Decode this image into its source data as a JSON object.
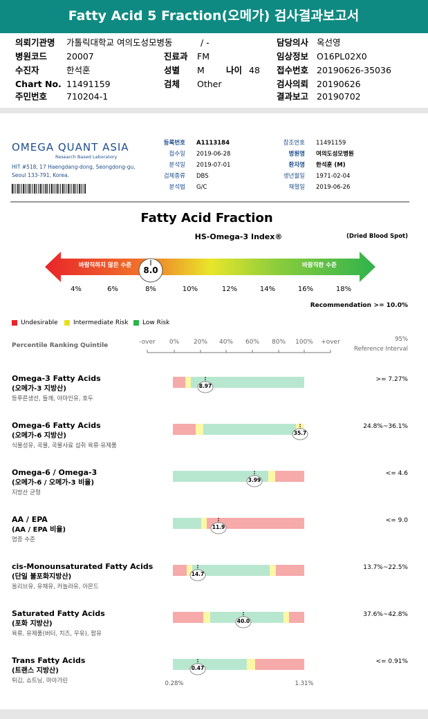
{
  "header": {
    "title": "Fatty Acid 5 Fraction(오메가) 검사결과보고서"
  },
  "info": {
    "requester": {
      "label": "의뢰기관명",
      "value": "가톨릭대학교 여의도성모병동"
    },
    "department_ward": "/ -",
    "doctor": {
      "label": "담당의사",
      "value": "옥선영"
    },
    "hospital_code": {
      "label": "병원코드",
      "value": "20007"
    },
    "department": {
      "label": "진료과",
      "value": "FM"
    },
    "clinical_info": {
      "label": "임상정보",
      "value": "O16PL02X0"
    },
    "patient": {
      "label": "수진자",
      "value": "한석훈"
    },
    "sex": {
      "label": "성별",
      "value": "M"
    },
    "age": {
      "label": "나이",
      "value": "48"
    },
    "receipt_no": {
      "label": "접수번호",
      "value": "20190626-35036"
    },
    "chart_no": {
      "label": "Chart No.",
      "value": "11491159"
    },
    "specimen": {
      "label": "검체",
      "value": "Other"
    },
    "request_date": {
      "label": "검사의뢰",
      "value": "20190626"
    },
    "resident_no": {
      "label": "주민번호",
      "value": "710204-1"
    },
    "report_date": {
      "label": "결과보고",
      "value": "20190702"
    }
  },
  "lab": {
    "name": "OMEGA QUANT ASIA",
    "tagline": "Research Based Laboratory",
    "address": [
      "HIT #518, 17 Haengdang-dong, Seongdong-gu,",
      "Seoul 133-791, Korea."
    ]
  },
  "report_info": {
    "left": [
      {
        "label": "등록번호",
        "value": "A1113184"
      },
      {
        "label": "접수일",
        "value": "2019-06-28"
      },
      {
        "label": "분석일",
        "value": "2019-07-01"
      },
      {
        "label": "검체종류",
        "value": "DBS"
      },
      {
        "label": "분석법",
        "value": "G/C"
      }
    ],
    "right": [
      {
        "label": "참조번호",
        "value": "11491159"
      },
      {
        "label": "병원명",
        "value": "여의도성모병원"
      },
      {
        "label": "환자명",
        "value": "한석훈 (M)"
      },
      {
        "label": "생년월일",
        "value": "1971-02-04"
      },
      {
        "label": "채혈일",
        "value": "2019-06-26"
      }
    ]
  },
  "index": {
    "title": "Fatty Acid Fraction",
    "subtitle": "HS-Omega-3 Index®",
    "sample": "(Dried Blood Spot)",
    "low_label": "바람직하지 않은 수준",
    "high_label": "바람직한 수준",
    "value": "8.0",
    "ticks": [
      "4%",
      "6%",
      "8%",
      "10%",
      "12%",
      "14%",
      "16%",
      "18%"
    ],
    "recommendation_label": "Recommendation",
    "recommendation": ">= 10.0%"
  },
  "legend": [
    "Undesirable",
    "Intermediate Risk",
    "Low Risk"
  ],
  "table_header": {
    "title": "Percentile Ranking Quintile",
    "scale": [
      "-over",
      "0%",
      "20%",
      "40%",
      "60%",
      "80%",
      "100%",
      "+over"
    ],
    "reference_top": "95%",
    "reference": "Reference Interval"
  },
  "rows": [
    {
      "name": "Omega-3 Fatty Acids",
      "korean": "(오메가-3 지방산)",
      "foods": "등푸른생선, 들깨, 아마인유, 호두",
      "value": "8.97",
      "reference": ">= 7.27%"
    },
    {
      "name": "Omega-6 Fatty Acids",
      "korean": "(오메가-6 지방산)",
      "foods": "식물성유, 곡물, 곡물사료 섭취 육류·유제품",
      "value": "35.7",
      "reference": "24.8%~36.1%"
    },
    {
      "name": "Omega-6 / Omega-3",
      "korean": "(오메가-6 / 오메가-3 비율)",
      "foods": "지방산 균형",
      "value": "3.99",
      "reference": "<= 4.6"
    },
    {
      "name": "AA / EPA",
      "korean": "(AA / EPA 비율)",
      "foods": "염증 수준",
      "value": "11.9",
      "reference": "<= 9.0"
    },
    {
      "name": "cis-Monounsaturated Fatty Acids",
      "korean": "(단일 불포화지방산)",
      "foods": "올리브유, 유채유, 카놀라유, 아몬드",
      "value": "14.7",
      "reference": "13.7%~22.5%"
    },
    {
      "name": "Saturated Fatty Acids",
      "korean": "(포화 지방산)",
      "foods": "육류, 유제품(버터, 치즈, 우유), 팜유",
      "value": "40.0",
      "reference": "37.6%~42.8%"
    },
    {
      "name": "Trans Fatty Acids",
      "korean": "(트랜스 지방산)",
      "foods": "튀김, 쇼트닝, 마아가린",
      "value": "0.47",
      "reference": "<= 0.91%"
    }
  ],
  "trans_scale": [
    "0.28%",
    "1.31%"
  ]
}
